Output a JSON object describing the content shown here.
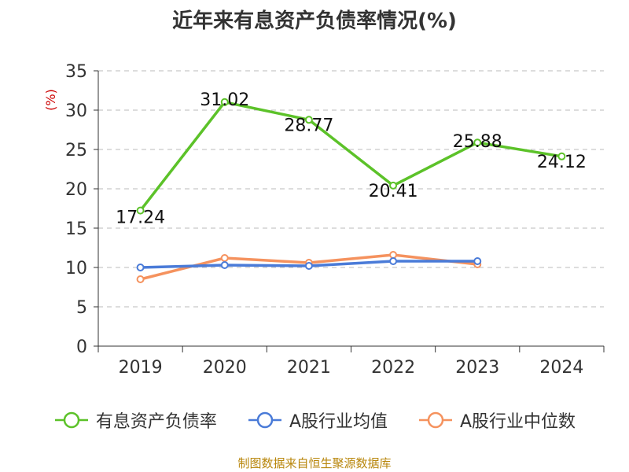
{
  "chart_data": {
    "type": "line",
    "title": "近年来有息资产负债率情况(%)",
    "ylabel": "(%)",
    "xlabel": "",
    "categories": [
      "2019",
      "2020",
      "2021",
      "2022",
      "2023",
      "2024"
    ],
    "ylim": [
      0,
      35
    ],
    "yticks": [
      0,
      5,
      10,
      15,
      20,
      25,
      30,
      35
    ],
    "grid": true,
    "legend_position": "bottom",
    "series": [
      {
        "name": "有息资产负债率",
        "color": "#5cc229",
        "values": [
          17.24,
          31.02,
          28.77,
          20.41,
          25.88,
          24.12
        ],
        "labels": [
          "17.24",
          "31.02",
          "28.77",
          "20.41",
          "25.88",
          "24.12"
        ]
      },
      {
        "name": "A股行业均值",
        "color": "#4a7bd8",
        "values": [
          10.0,
          10.3,
          10.2,
          10.8,
          10.8,
          null
        ]
      },
      {
        "name": "A股行业中位数",
        "color": "#f5925e",
        "values": [
          8.5,
          11.2,
          10.6,
          11.6,
          10.4,
          null
        ]
      }
    ]
  },
  "source": "制图数据来自恒生聚源数据库"
}
